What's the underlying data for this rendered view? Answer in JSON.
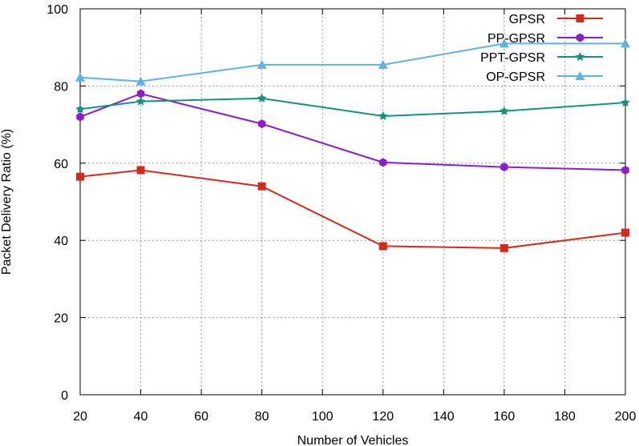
{
  "chart_data": {
    "type": "line",
    "title": "",
    "xlabel": "Number of Vehicles",
    "ylabel": "Packet Delivery Ratio (%)",
    "xlim": [
      20,
      200
    ],
    "ylim": [
      0,
      100
    ],
    "xticks": [
      20,
      40,
      60,
      80,
      100,
      120,
      140,
      160,
      180,
      200
    ],
    "yticks": [
      0,
      20,
      40,
      60,
      80,
      100
    ],
    "grid": true,
    "legend_position": "top-right",
    "x": [
      20,
      40,
      80,
      120,
      160,
      200
    ],
    "series": [
      {
        "name": "GPSR",
        "color": "#d42a1a",
        "marker": "square",
        "values": [
          56.5,
          58.2,
          54,
          38.5,
          38,
          42
        ]
      },
      {
        "name": "PP-GPSR",
        "color": "#8e1bd0",
        "marker": "hexagon",
        "values": [
          72,
          78,
          70.2,
          60.2,
          59,
          58.2
        ]
      },
      {
        "name": "PPT-GPSR",
        "color": "#13937a",
        "marker": "star",
        "values": [
          74,
          76,
          76.8,
          72.2,
          73.5,
          75.7
        ]
      },
      {
        "name": "OP-GPSR",
        "color": "#5cb3e6",
        "marker": "triangle",
        "values": [
          82.2,
          81.2,
          85.5,
          85.5,
          91,
          91
        ]
      }
    ]
  }
}
